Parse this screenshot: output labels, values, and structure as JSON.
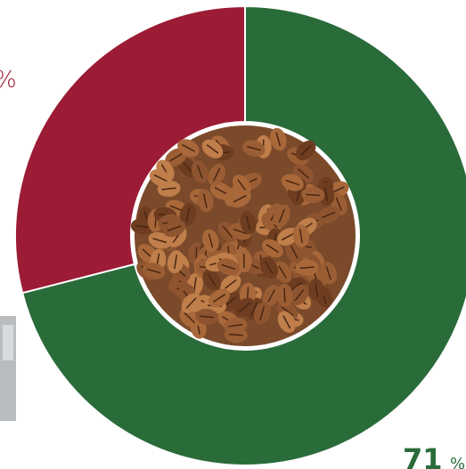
{
  "chart_data": {
    "type": "donut",
    "categories": [
      "green",
      "red"
    ],
    "series": [
      {
        "values": [
          71,
          29
        ],
        "colors": [
          "#2a6b3a",
          "#9c1b35"
        ]
      }
    ],
    "unit": "%"
  }
}
